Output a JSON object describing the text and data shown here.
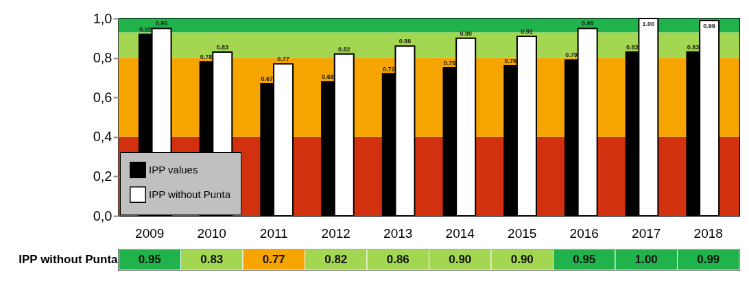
{
  "chart_data": [
    {
      "type": "bar",
      "categories": [
        "2009",
        "2010",
        "2011",
        "2012",
        "2013",
        "2014",
        "2015",
        "2016",
        "2017",
        "2018"
      ],
      "series": [
        {
          "name": "IPP values",
          "color": "#000000",
          "values": [
            0.92,
            0.78,
            0.67,
            0.68,
            0.72,
            0.75,
            0.76,
            0.79,
            0.83,
            0.83
          ]
        },
        {
          "name": "IPP without Punta",
          "color": "#ffffff",
          "values": [
            0.95,
            0.83,
            0.77,
            0.82,
            0.86,
            0.9,
            0.91,
            0.95,
            1.0,
            0.99
          ],
          "value_labels": [
            "0.95",
            "0.83",
            "0.77",
            "0.82",
            "0.86",
            "0.90",
            "0.91",
            "0.95",
            "1.00",
            "0.99"
          ]
        }
      ],
      "ylim": [
        0,
        1
      ],
      "yticks": [
        {
          "value": 0,
          "label": "0,0"
        },
        {
          "value": 0.2,
          "label": "0,2"
        },
        {
          "value": 0.4,
          "label": "0,4"
        },
        {
          "value": 0.6,
          "label": "0,6"
        },
        {
          "value": 0.8,
          "label": "0,8"
        },
        {
          "value": 1,
          "label": "1,0"
        }
      ],
      "bands": [
        {
          "axis": "y",
          "from": 0,
          "to": 0.4,
          "color": "#d2310f"
        },
        {
          "axis": "y",
          "from": 0.4,
          "to": 0.8,
          "color": "#f5a400"
        },
        {
          "axis": "y",
          "from": 0.8,
          "to": 0.93,
          "color": "#a3d651"
        },
        {
          "axis": "y",
          "from": 0.93,
          "to": 1,
          "color": "#21b34b"
        }
      ],
      "data_labels": true,
      "legend": "bottom left",
      "tick_labels": "y",
      "grid": false
    },
    {
      "type": "heatmap",
      "categories": [
        "2009",
        "2010",
        "2011",
        "2012",
        "2013",
        "2014",
        "2015",
        "2016",
        "2017",
        "2018"
      ],
      "y_categories": [
        "IPP without Punta"
      ],
      "cells": [
        [
          0.95,
          0.83,
          0.77,
          0.82,
          0.86,
          0.9,
          0.9,
          0.95,
          1.0,
          0.99
        ]
      ],
      "cell_labels": [
        [
          "0.95",
          "0.83",
          "0.77",
          "0.82",
          "0.86",
          "0.90",
          "0.90",
          "0.95",
          "1.00",
          "0.99"
        ]
      ]
    }
  ]
}
